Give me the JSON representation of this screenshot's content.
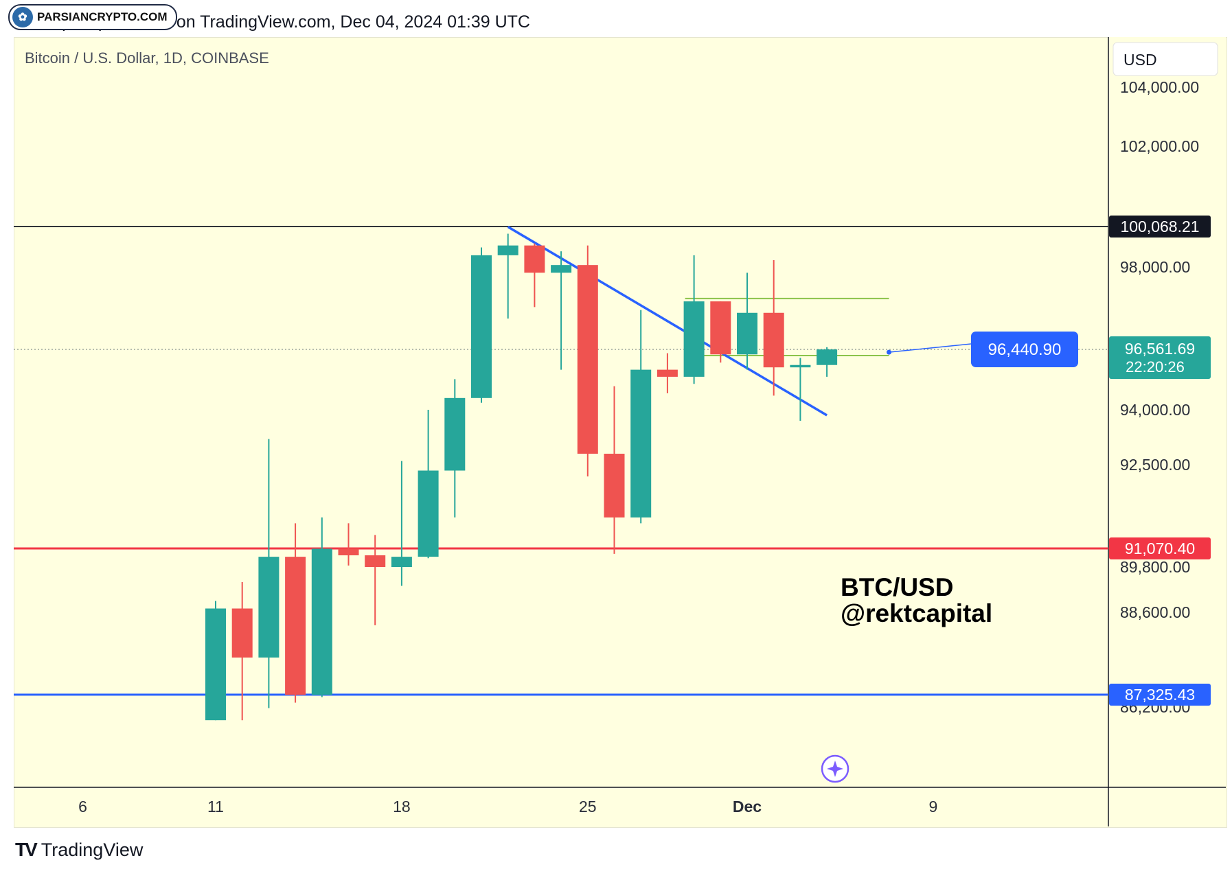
{
  "header": {
    "published": "rektcapital published on TradingView.com, Dec 04, 2024 01:39 UTC"
  },
  "watermark": {
    "text": "PARSIANCRYPTO.COM",
    "icon": "tree-logo-icon"
  },
  "footer": {
    "brand": "TradingView",
    "icon": "tradingview-logo-icon"
  },
  "chart_data": {
    "type": "candlestick",
    "title": "Bitcoin / U.S. Dollar, 1D, COINBASE",
    "currency": "USD",
    "annotation": [
      "BTC/USD",
      "@rektcapital"
    ],
    "colors": {
      "up": "#26a69a",
      "down": "#ef5350",
      "background": "#ffffe0"
    },
    "y_ticks": [
      "104,000.00",
      "102,000.00",
      "98,000.00",
      "94,000.00",
      "92,500.00",
      "89,800.00",
      "88,600.00",
      "86,200.00"
    ],
    "x_ticks": [
      "6",
      "11",
      "18",
      "25",
      "Dec",
      "9"
    ],
    "levels": [
      {
        "label": "100,068.21",
        "value": 100068.21,
        "color": "#131722"
      },
      {
        "label": "91,070.40",
        "value": 91070.4,
        "color": "#f23645"
      },
      {
        "label": "87,325.43",
        "value": 87325.43,
        "color": "#2962ff"
      }
    ],
    "current_price": {
      "label": "96,561.69",
      "countdown": "22:20:26",
      "value": 96561.69,
      "color": "#26a69a"
    },
    "price_note": {
      "label": "96,440.90",
      "value": 96440.9,
      "color": "#2962ff"
    },
    "trendline": {
      "from": {
        "date": "2024-11-22",
        "price": 100050
      },
      "to": {
        "date": "2024-12-04",
        "price": 93850
      },
      "color": "#2962ff"
    },
    "range_box": {
      "start": "2024-11-29",
      "end": "2024-12-06",
      "top": 97450,
      "bottom": 96300,
      "color": "#8bc34a"
    },
    "candles": [
      {
        "date": "2024-11-11",
        "open": 85000,
        "high": 88900,
        "low": 85000,
        "close": 88700
      },
      {
        "date": "2024-11-12",
        "open": 88700,
        "high": 89400,
        "low": 85000,
        "close": 87900
      },
      {
        "date": "2024-11-13",
        "open": 87900,
        "high": 93200,
        "low": 86100,
        "close": 90500
      },
      {
        "date": "2024-11-14",
        "open": 90500,
        "high": 91500,
        "low": 86600,
        "close": 87300
      },
      {
        "date": "2024-11-15",
        "open": 87300,
        "high": 91600,
        "low": 87100,
        "close": 91050
      },
      {
        "date": "2024-11-16",
        "open": 91050,
        "high": 91500,
        "low": 89900,
        "close": 90600
      },
      {
        "date": "2024-11-17",
        "open": 90600,
        "high": 91300,
        "low": 88400,
        "close": 89800
      },
      {
        "date": "2024-11-18",
        "open": 89800,
        "high": 92600,
        "low": 89300,
        "close": 90500
      },
      {
        "date": "2024-11-19",
        "open": 90500,
        "high": 94000,
        "low": 90400,
        "close": 92400
      },
      {
        "date": "2024-11-20",
        "open": 92400,
        "high": 95300,
        "low": 91600,
        "close": 94500
      },
      {
        "date": "2024-11-21",
        "open": 94500,
        "high": 99000,
        "low": 94300,
        "close": 98600
      },
      {
        "date": "2024-11-22",
        "open": 98600,
        "high": 99700,
        "low": 97100,
        "close": 99100
      },
      {
        "date": "2024-11-23",
        "open": 99100,
        "high": 99200,
        "low": 97300,
        "close": 97900
      },
      {
        "date": "2024-11-24",
        "open": 97900,
        "high": 98800,
        "low": 95700,
        "close": 98100
      },
      {
        "date": "2024-11-25",
        "open": 98100,
        "high": 99100,
        "low": 92300,
        "close": 92800
      },
      {
        "date": "2024-11-26",
        "open": 92800,
        "high": 95000,
        "low": 90700,
        "close": 91600
      },
      {
        "date": "2024-11-27",
        "open": 91600,
        "high": 97250,
        "low": 91500,
        "close": 95700
      },
      {
        "date": "2024-11-28",
        "open": 95700,
        "high": 96400,
        "low": 94700,
        "close": 95400
      },
      {
        "date": "2024-11-29",
        "open": 95400,
        "high": 98600,
        "low": 95100,
        "close": 97400
      },
      {
        "date": "2024-11-30",
        "open": 97400,
        "high": 97400,
        "low": 96000,
        "close": 96350
      },
      {
        "date": "2024-12-01",
        "open": 96350,
        "high": 97900,
        "low": 95700,
        "close": 97200
      },
      {
        "date": "2024-12-02",
        "open": 97200,
        "high": 98350,
        "low": 94600,
        "close": 95800
      },
      {
        "date": "2024-12-03",
        "open": 95800,
        "high": 96200,
        "low": 93700,
        "close": 95900
      },
      {
        "date": "2024-12-04",
        "open": 95900,
        "high": 96600,
        "low": 95400,
        "close": 96560
      }
    ]
  }
}
